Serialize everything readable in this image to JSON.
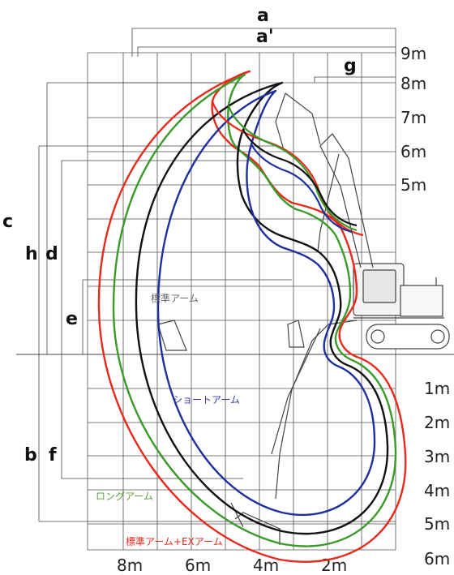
{
  "dimension_labels": {
    "a": "a",
    "a_prime": "a'",
    "b": "b",
    "c": "c",
    "d": "d",
    "e": "e",
    "f": "f",
    "g": "g",
    "h": "h"
  },
  "height_scale": [
    "9m",
    "8m",
    "7m",
    "6m",
    "5m"
  ],
  "depth_scale": [
    "1m",
    "2m",
    "3m",
    "4m",
    "5m",
    "6m"
  ],
  "horizontal_scale": [
    "8m",
    "6m",
    "4m",
    "2m"
  ],
  "curve_labels": {
    "standard": "標準アーム",
    "short": "ショートアーム",
    "long": "ロングアーム",
    "ex": "標準アーム+EXアーム"
  },
  "curve_colors": {
    "standard": "#111111",
    "short": "#1f2f9e",
    "long": "#3a9a2a",
    "ex": "#e8291c",
    "grid": "#555555",
    "label_standard": "#666666",
    "label_short": "#3b3b9a",
    "label_long": "#5aa03a",
    "label_ex": "#e8291c"
  }
}
